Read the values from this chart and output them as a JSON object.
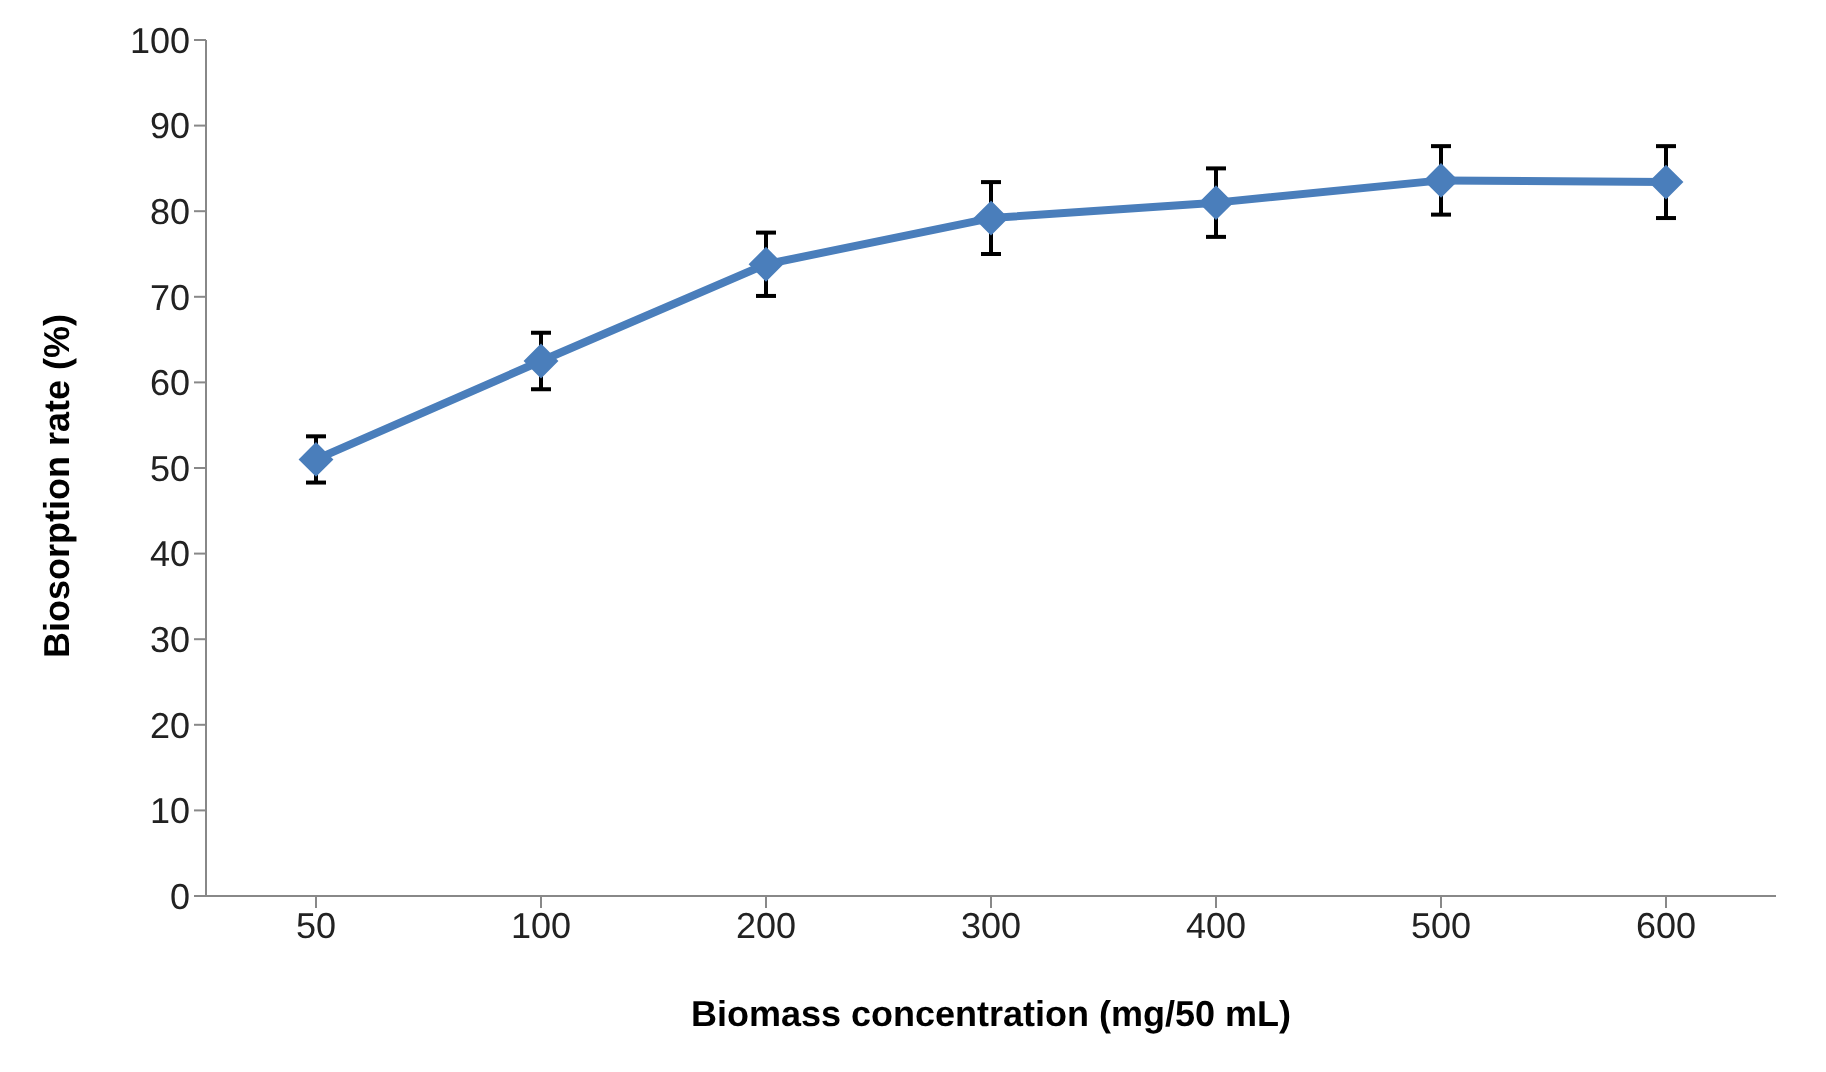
{
  "chart_data": {
    "type": "line",
    "xlabel": "Biomass concentration (mg/50 mL)",
    "ylabel": "Biosorption rate (%)",
    "categories": [
      "50",
      "100",
      "200",
      "300",
      "400",
      "500",
      "600"
    ],
    "series": [
      {
        "color": "#4a7ebb",
        "values": [
          51,
          62.5,
          73.8,
          79.2,
          81,
          83.6,
          83.4
        ],
        "errors": [
          2.7,
          3.3,
          3.7,
          4.2,
          4,
          4,
          4.2
        ]
      }
    ],
    "ylim": [
      0,
      100
    ],
    "yticks": [
      0,
      10,
      20,
      30,
      40,
      50,
      60,
      70,
      80,
      90,
      100
    ],
    "grid": false,
    "legend": false,
    "marker": "diamond",
    "line_style": "solid"
  }
}
